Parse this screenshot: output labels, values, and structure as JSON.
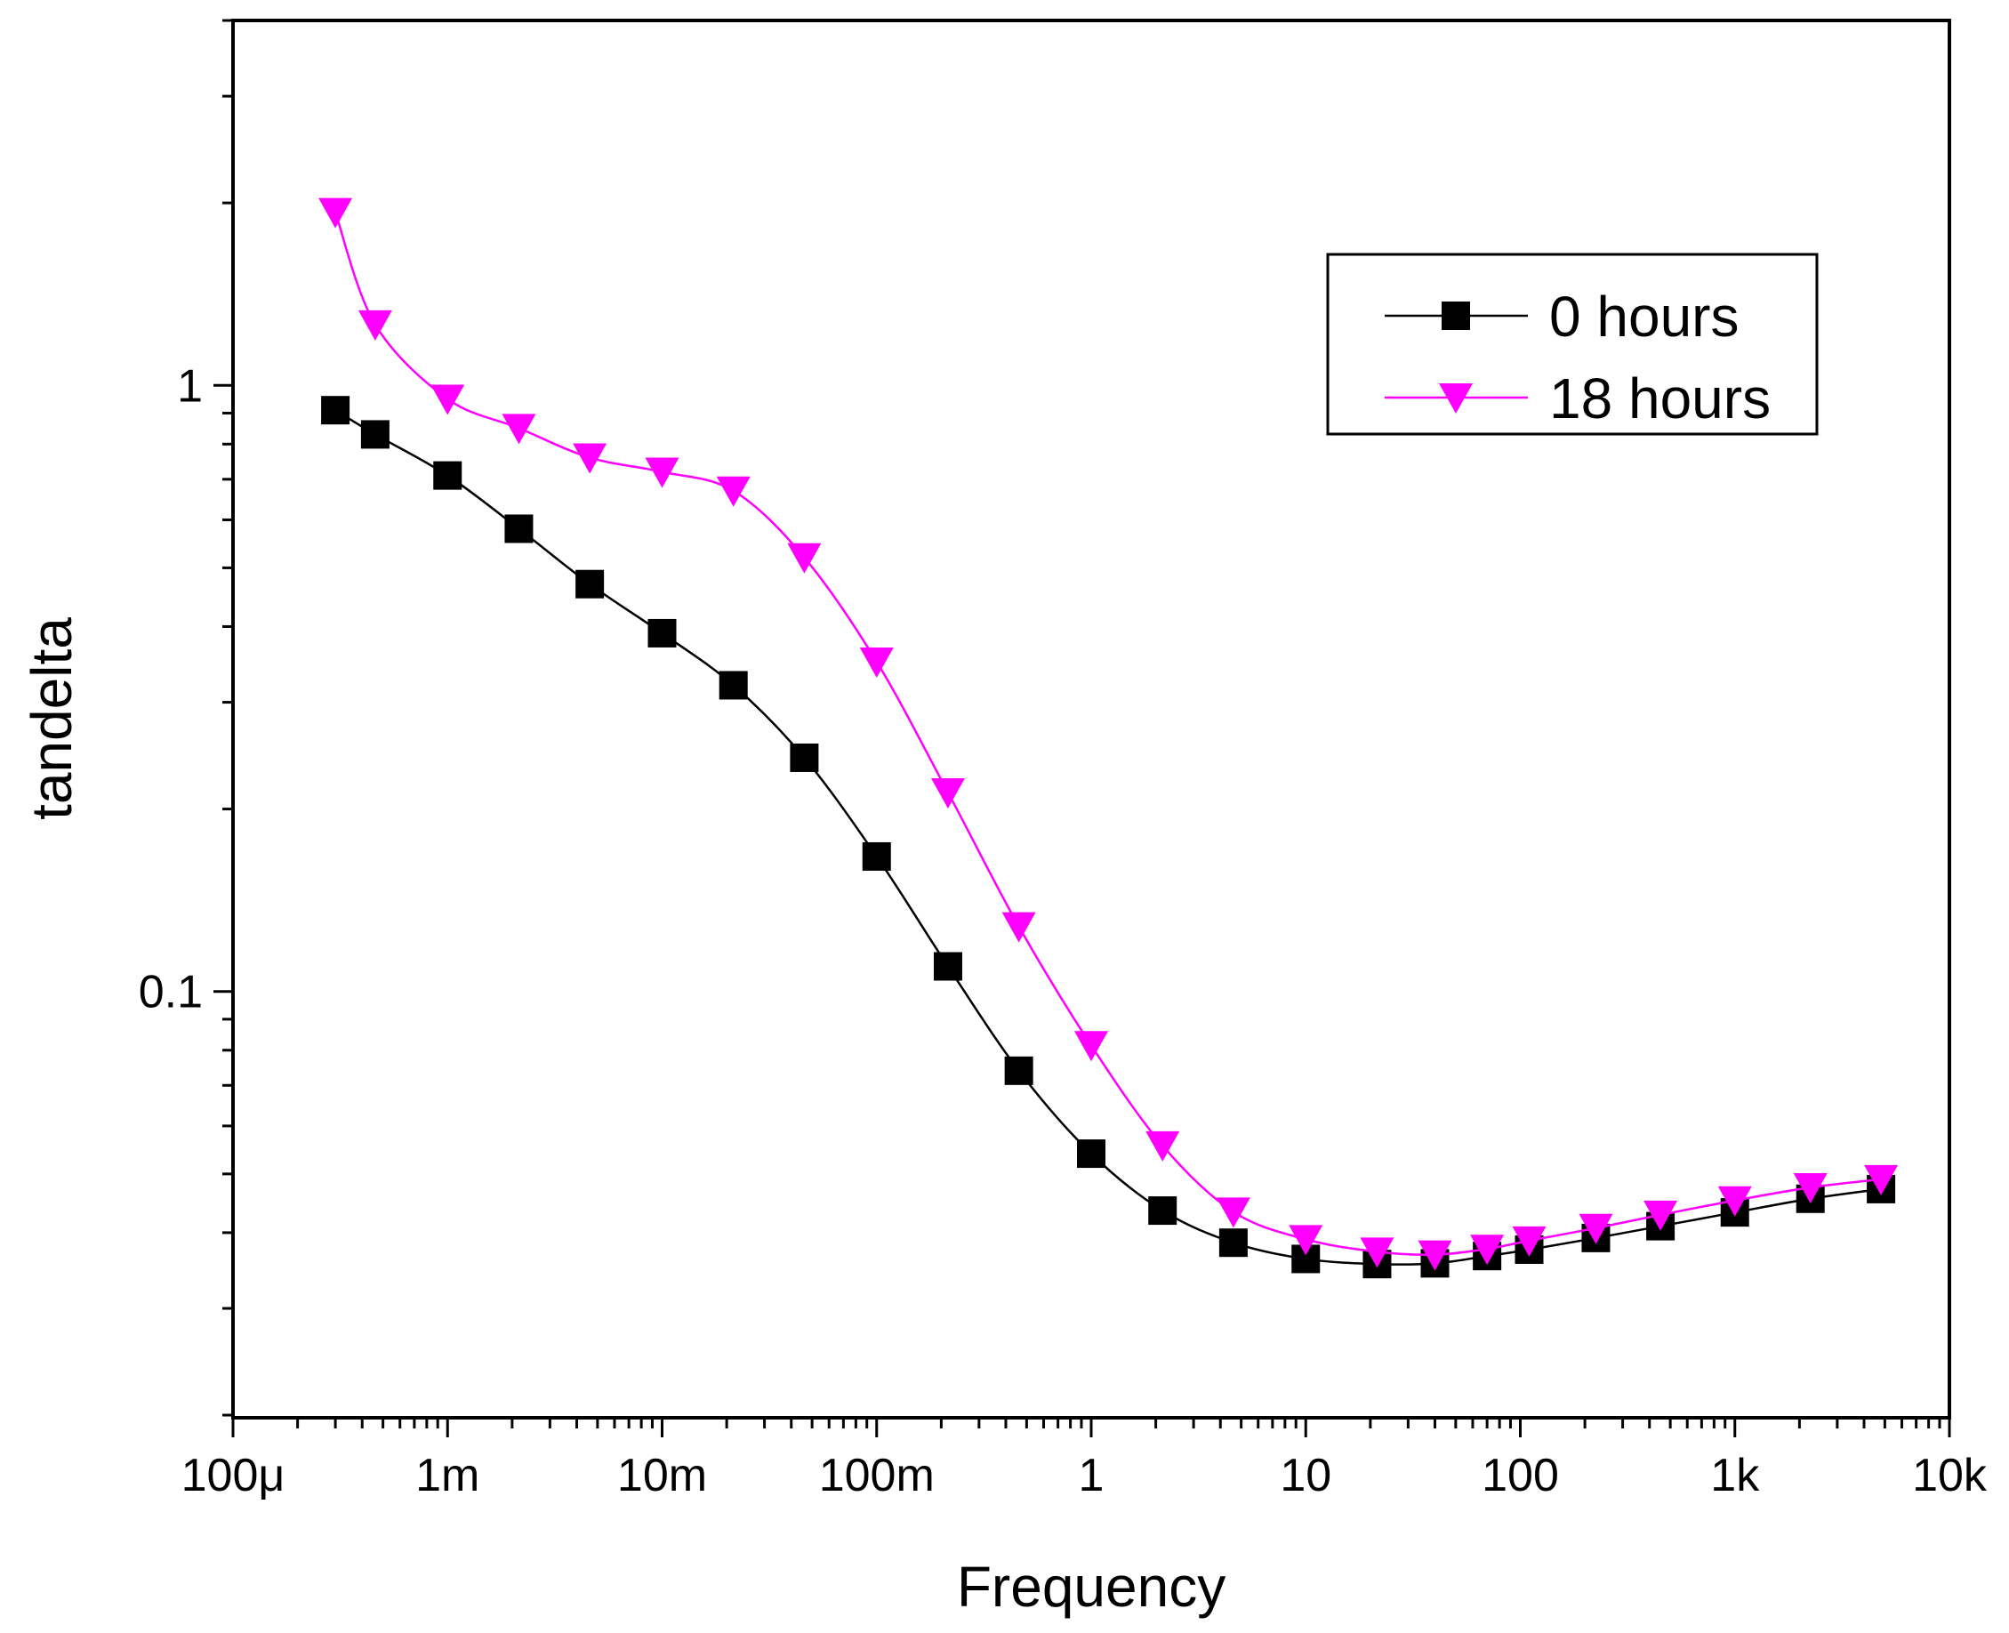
{
  "chart_data": {
    "type": "line",
    "xlabel": "Frequency",
    "ylabel": "tandelta",
    "x_scale": "log",
    "y_scale": "log",
    "xlim": [
      0.0001,
      10000
    ],
    "ylim": [
      0.0198,
      4.0
    ],
    "x_ticks": [
      {
        "value": 0.0001,
        "label": "100μ"
      },
      {
        "value": 0.001,
        "label": "1m"
      },
      {
        "value": 0.01,
        "label": "10m"
      },
      {
        "value": 0.1,
        "label": "100m"
      },
      {
        "value": 1,
        "label": "1"
      },
      {
        "value": 10,
        "label": "10"
      },
      {
        "value": 100,
        "label": "100"
      },
      {
        "value": 1000,
        "label": "1k"
      },
      {
        "value": 10000,
        "label": "10k"
      }
    ],
    "y_ticks": [
      {
        "value": 0.1,
        "label": "0.1"
      },
      {
        "value": 1,
        "label": "1"
      }
    ],
    "grid": false,
    "legend_position": "top-right",
    "series": [
      {
        "name": "0 hours",
        "color": "#000000",
        "marker": "square",
        "points": [
          [
            0.0003,
            0.91
          ],
          [
            0.00046,
            0.83
          ],
          [
            0.001,
            0.71
          ],
          [
            0.00215,
            0.58
          ],
          [
            0.0046,
            0.47
          ],
          [
            0.01,
            0.39
          ],
          [
            0.0215,
            0.32
          ],
          [
            0.046,
            0.243
          ],
          [
            0.1,
            0.167
          ],
          [
            0.215,
            0.11
          ],
          [
            0.46,
            0.074
          ],
          [
            1.0,
            0.054
          ],
          [
            2.15,
            0.0435
          ],
          [
            4.6,
            0.0385
          ],
          [
            10,
            0.0362
          ],
          [
            21.5,
            0.0355
          ],
          [
            40,
            0.0356
          ],
          [
            70,
            0.0366
          ],
          [
            110,
            0.0375
          ],
          [
            225,
            0.0392
          ],
          [
            450,
            0.041
          ],
          [
            1000,
            0.0432
          ],
          [
            2250,
            0.0455
          ],
          [
            4800,
            0.0472
          ]
        ]
      },
      {
        "name": "18 hours",
        "color": "#ff00ff",
        "marker": "triangle-down",
        "points": [
          [
            0.0003,
            1.93
          ],
          [
            0.00046,
            1.26
          ],
          [
            0.001,
            0.95
          ],
          [
            0.00215,
            0.85
          ],
          [
            0.0046,
            0.76
          ],
          [
            0.01,
            0.72
          ],
          [
            0.0215,
            0.67
          ],
          [
            0.046,
            0.52
          ],
          [
            0.1,
            0.35
          ],
          [
            0.215,
            0.213
          ],
          [
            0.46,
            0.128
          ],
          [
            1.0,
            0.0815
          ],
          [
            2.15,
            0.0557
          ],
          [
            4.6,
            0.0433
          ],
          [
            10,
            0.039
          ],
          [
            21.5,
            0.0372
          ],
          [
            40,
            0.0368
          ],
          [
            70,
            0.0376
          ],
          [
            110,
            0.0388
          ],
          [
            225,
            0.0407
          ],
          [
            450,
            0.0428
          ],
          [
            1000,
            0.0452
          ],
          [
            2250,
            0.0475
          ],
          [
            4800,
            0.049
          ]
        ]
      }
    ]
  }
}
